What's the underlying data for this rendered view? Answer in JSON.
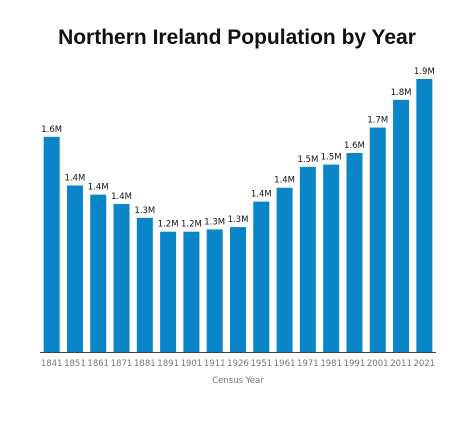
{
  "chart_data": {
    "type": "bar",
    "title": "Northern Ireland Population by Year",
    "xlabel": "Census Year",
    "ylabel": "",
    "categories": [
      "1841",
      "1851",
      "1861",
      "1871",
      "1881",
      "1891",
      "1901",
      "1911",
      "1926",
      "1951",
      "1961",
      "1971",
      "1981",
      "1991",
      "2001",
      "2011",
      "2021"
    ],
    "values": [
      1.65,
      1.44,
      1.4,
      1.36,
      1.3,
      1.24,
      1.24,
      1.25,
      1.26,
      1.37,
      1.43,
      1.52,
      1.53,
      1.58,
      1.69,
      1.81,
      1.9
    ],
    "data_labels": [
      "1.6M",
      "1.4M",
      "1.4M",
      "1.4M",
      "1.3M",
      "1.2M",
      "1.2M",
      "1.3M",
      "1.3M",
      "1.4M",
      "1.4M",
      "1.5M",
      "1.5M",
      "1.6M",
      "1.7M",
      "1.8M",
      "1.9M"
    ],
    "ylim": [
      0.72,
      1.9
    ],
    "bar_color": "#0a85c8",
    "axis_color": "#444444",
    "grid": false,
    "legend": "none"
  }
}
